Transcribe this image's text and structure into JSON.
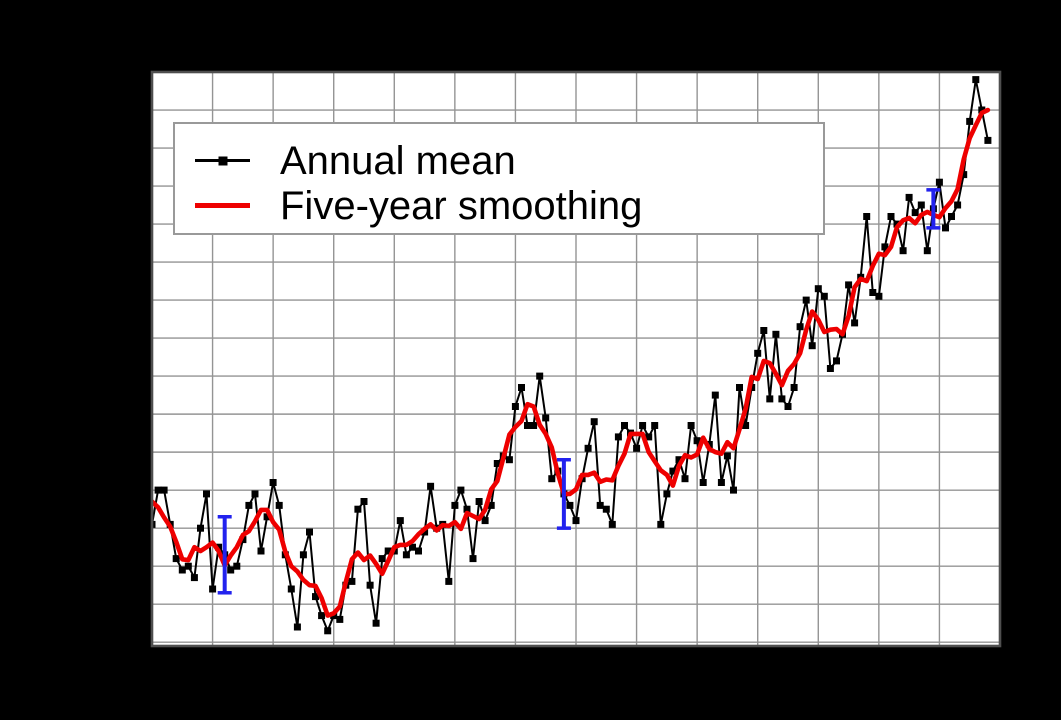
{
  "colors": {
    "background": "#000000",
    "plot_background": "#ffffff",
    "gridline": "#949494",
    "frame": "#4f4f4f",
    "annual_mean": "#000000",
    "five_year_smoothing": "#ee0000",
    "error_bar": "#2222ee",
    "legend_border": "#999999",
    "legend_background": "#ffffff"
  },
  "legend": {
    "items": [
      {
        "label": "Annual mean",
        "swatch": "black-line-with-square-marker"
      },
      {
        "label": "Five-year smoothing",
        "swatch": "red-line"
      }
    ]
  },
  "chart_data": {
    "type": "line",
    "title": "",
    "xlabel": "",
    "ylabel": "",
    "xlim": [
      1880,
      2020
    ],
    "ylim": [
      -0.51,
      1.0
    ],
    "x_grid_step_years": 10,
    "y_grid_step_degrees": 0.1,
    "grid": true,
    "legend_position": "top-left",
    "start_year": 1880,
    "end_year": 2018,
    "series": [
      {
        "name": "Annual mean",
        "style": "line-with-square-markers",
        "color": "#000000",
        "start_year": 1880,
        "values": [
          -0.19,
          -0.1,
          -0.1,
          -0.19,
          -0.28,
          -0.31,
          -0.3,
          -0.33,
          -0.2,
          -0.11,
          -0.36,
          -0.25,
          -0.27,
          -0.31,
          -0.3,
          -0.23,
          -0.14,
          -0.11,
          -0.26,
          -0.17,
          -0.08,
          -0.14,
          -0.27,
          -0.36,
          -0.46,
          -0.27,
          -0.21,
          -0.38,
          -0.43,
          -0.47,
          -0.43,
          -0.44,
          -0.35,
          -0.34,
          -0.15,
          -0.13,
          -0.35,
          -0.45,
          -0.28,
          -0.26,
          -0.26,
          -0.18,
          -0.27,
          -0.25,
          -0.26,
          -0.21,
          -0.09,
          -0.2,
          -0.19,
          -0.34,
          -0.14,
          -0.1,
          -0.15,
          -0.28,
          -0.13,
          -0.18,
          -0.14,
          -0.03,
          -0.01,
          -0.02,
          0.12,
          0.17,
          0.07,
          0.07,
          0.2,
          0.09,
          -0.07,
          -0.05,
          -0.11,
          -0.14,
          -0.18,
          -0.07,
          0.01,
          0.08,
          -0.14,
          -0.15,
          -0.19,
          0.04,
          0.07,
          0.05,
          0.01,
          0.07,
          0.04,
          0.07,
          -0.19,
          -0.11,
          -0.05,
          -0.02,
          -0.07,
          0.07,
          0.03,
          -0.08,
          0.02,
          0.15,
          -0.08,
          -0.01,
          -0.1,
          0.17,
          0.07,
          0.17,
          0.26,
          0.32,
          0.14,
          0.31,
          0.14,
          0.12,
          0.17,
          0.33,
          0.4,
          0.28,
          0.43,
          0.41,
          0.22,
          0.24,
          0.31,
          0.44,
          0.34,
          0.46,
          0.62,
          0.42,
          0.41,
          0.54,
          0.62,
          0.6,
          0.53,
          0.67,
          0.63,
          0.65,
          0.53,
          0.64,
          0.71,
          0.59,
          0.62,
          0.65,
          0.73,
          0.87,
          0.98,
          0.9,
          0.82
        ]
      },
      {
        "name": "Five-year smoothing",
        "style": "line",
        "color": "#ee0000",
        "derivation": "centered 5-year moving average of annual mean (window shrinks at ends)"
      }
    ],
    "error_bars": {
      "color": "#2222ee",
      "points": [
        {
          "year": 1892,
          "value": -0.27,
          "plus_minus": 0.1
        },
        {
          "year": 1948,
          "value": -0.11,
          "plus_minus": 0.09
        },
        {
          "year": 2009,
          "value": 0.64,
          "plus_minus": 0.05
        }
      ]
    }
  }
}
